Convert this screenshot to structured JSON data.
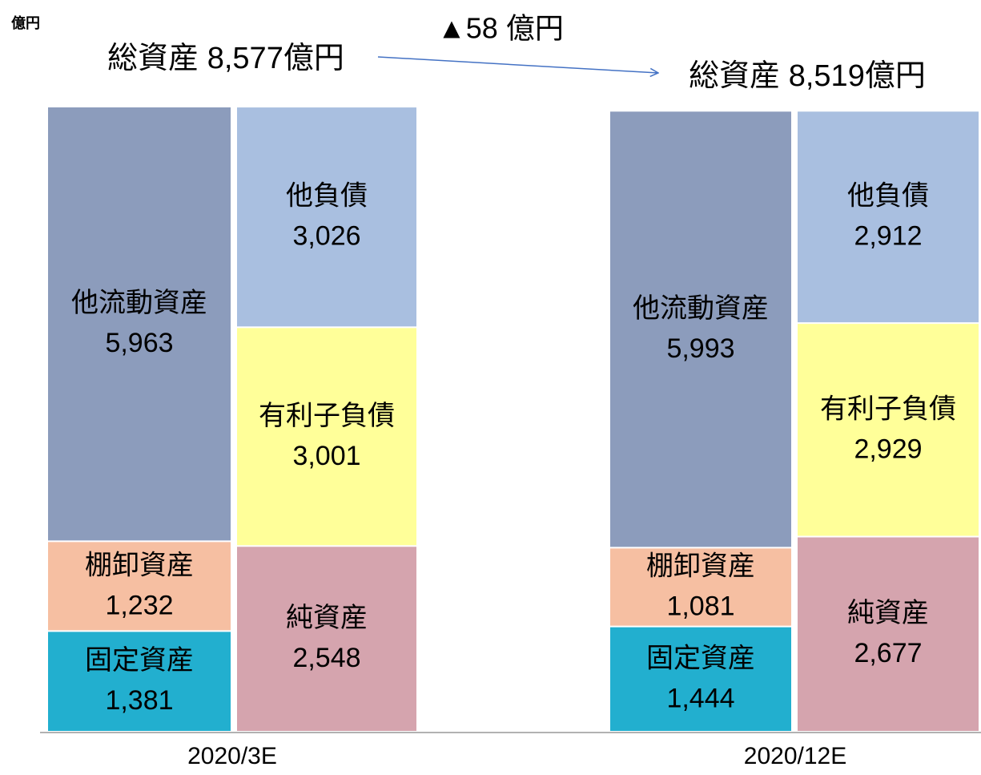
{
  "chart_data": {
    "type": "bar",
    "stacked": true,
    "unit_label": "億円",
    "annotation": "▲58 億円",
    "categories": [
      "2020/3E",
      "2020/12E"
    ],
    "total_labels": [
      "総資産 8,577億円",
      "総資産 8,519億円"
    ],
    "stacks": [
      {
        "series": [
          {
            "name": "固定資産",
            "color": "#22afcf",
            "values": [
              1381,
              1444
            ],
            "value_labels": [
              "1,381",
              "1,444"
            ]
          },
          {
            "name": "棚卸資産",
            "color": "#f6bfa2",
            "values": [
              1232,
              1081
            ],
            "value_labels": [
              "1,232",
              "1,081"
            ]
          },
          {
            "name": "他流動資産",
            "color": "#8c9cbc",
            "values": [
              5963,
              5993
            ],
            "value_labels": [
              "5,963",
              "5,993"
            ]
          }
        ]
      },
      {
        "series": [
          {
            "name": "純資産",
            "color": "#d5a4ae",
            "values": [
              2548,
              2677
            ],
            "value_labels": [
              "2,548",
              "2,677"
            ]
          },
          {
            "name": "有利子負債",
            "color": "#ffff99",
            "values": [
              3001,
              2929
            ],
            "value_labels": [
              "3,001",
              "2,929"
            ]
          },
          {
            "name": "他負債",
            "color": "#a9bfe0",
            "values": [
              3026,
              2912
            ],
            "value_labels": [
              "3,026",
              "2,912"
            ]
          }
        ]
      }
    ]
  }
}
